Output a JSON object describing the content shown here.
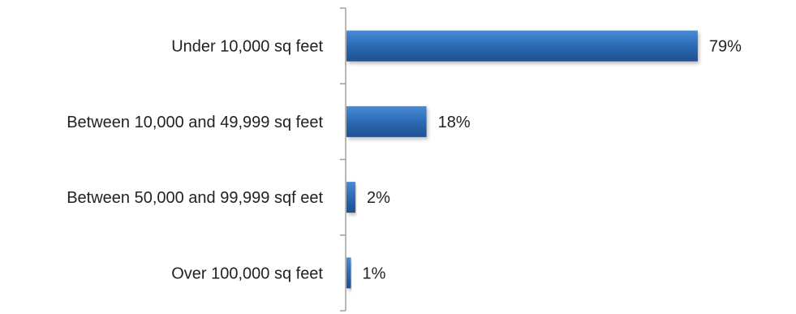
{
  "chart_data": {
    "type": "bar",
    "orientation": "horizontal",
    "categories": [
      "Under  10,000 sq feet",
      "Between 10,000 and 49,999 sq feet",
      "Between 50,000 and 99,999 sqf eet",
      "Over 100,000 sq feet"
    ],
    "values": [
      79,
      18,
      2,
      1
    ],
    "value_labels": [
      "79%",
      "18%",
      "2%",
      "1%"
    ],
    "value_unit": "%",
    "xlim": [
      0,
      100
    ],
    "title": "",
    "xlabel": "",
    "ylabel": "",
    "grid": false,
    "legend": "none",
    "colors": {
      "bar": "#2f6db8",
      "bar_light": "#4a8ad4",
      "bar_dark": "#1f4f8f",
      "axis": "#a0a0a0",
      "text": "#222222"
    }
  }
}
